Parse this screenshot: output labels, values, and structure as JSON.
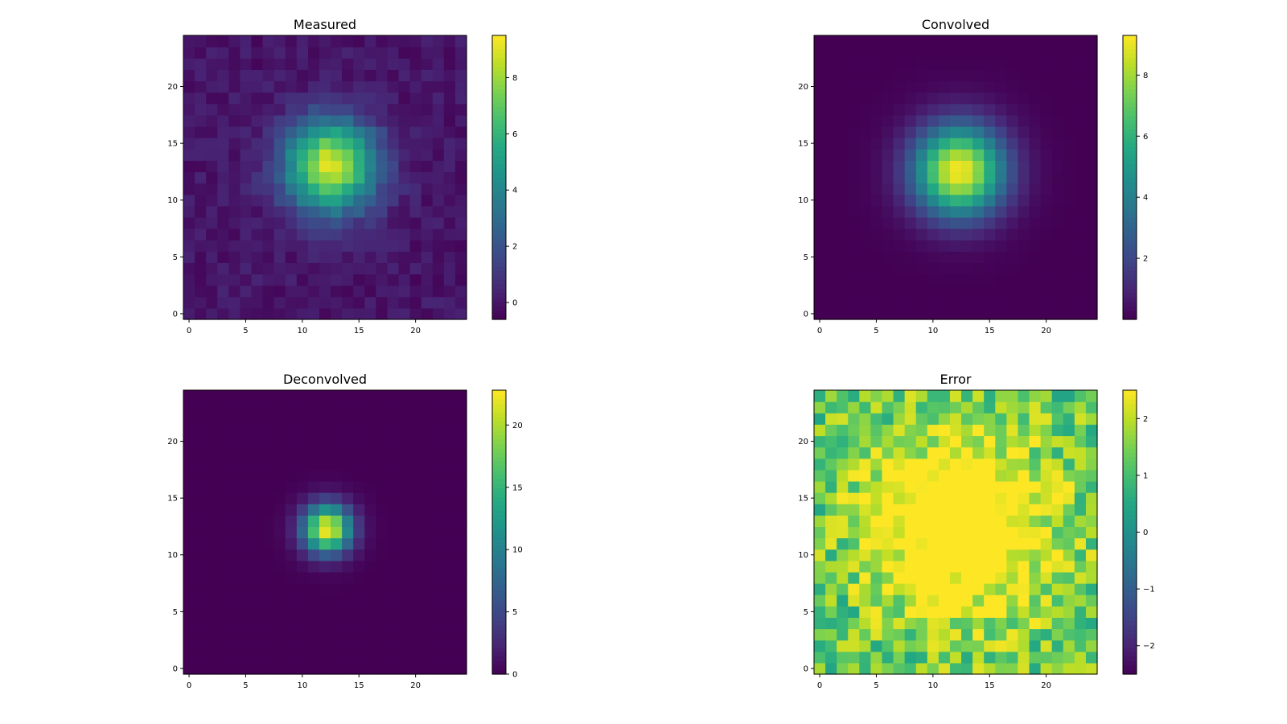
{
  "chart_data": [
    {
      "type": "heatmap",
      "title": "Measured",
      "grid_size": 25,
      "colormap": "viridis",
      "x_ticks": [
        0,
        5,
        10,
        15,
        20
      ],
      "y_ticks": [
        0,
        5,
        10,
        15,
        20
      ],
      "x_tick_labels": [
        "0",
        "5",
        "10",
        "15",
        "20"
      ],
      "y_tick_labels": [
        "0",
        "5",
        "10",
        "15",
        "20"
      ],
      "center": [
        12.5,
        13
      ],
      "sigma": 2.8,
      "peak": 9.0,
      "noise_amp": 0.45,
      "vrange": [
        -0.6,
        9.5
      ],
      "colorbar_ticks": [
        0,
        2,
        4,
        6,
        8
      ],
      "colorbar_tick_labels": [
        "0",
        "2",
        "4",
        "6",
        "8"
      ]
    },
    {
      "type": "heatmap",
      "title": "Convolved",
      "grid_size": 25,
      "colormap": "viridis",
      "x_ticks": [
        0,
        5,
        10,
        15,
        20
      ],
      "y_ticks": [
        0,
        5,
        10,
        15,
        20
      ],
      "x_tick_labels": [
        "0",
        "5",
        "10",
        "15",
        "20"
      ],
      "y_tick_labels": [
        "0",
        "5",
        "10",
        "15",
        "20"
      ],
      "center": [
        12.3,
        12.6
      ],
      "sigma": 2.8,
      "peak": 9.2,
      "noise_amp": 0,
      "vrange": [
        0.0,
        9.3
      ],
      "colorbar_ticks": [
        2,
        4,
        6,
        8
      ],
      "colorbar_tick_labels": [
        "2",
        "4",
        "6",
        "8"
      ]
    },
    {
      "type": "heatmap",
      "title": "Deconvolved",
      "grid_size": 25,
      "colormap": "viridis",
      "x_ticks": [
        0,
        5,
        10,
        15,
        20
      ],
      "y_ticks": [
        0,
        5,
        10,
        15,
        20
      ],
      "x_tick_labels": [
        "0",
        "5",
        "10",
        "15",
        "20"
      ],
      "y_tick_labels": [
        "0",
        "5",
        "10",
        "15",
        "20"
      ],
      "center": [
        12.2,
        12.3
      ],
      "sigma": 1.5,
      "peak": 22.5,
      "noise_amp": 0,
      "vrange": [
        0,
        22.8
      ],
      "colorbar_ticks": [
        0,
        5,
        10,
        15,
        20
      ],
      "colorbar_tick_labels": [
        "0",
        "5",
        "10",
        "15",
        "20"
      ]
    },
    {
      "type": "heatmap",
      "title": "Error",
      "grid_size": 25,
      "colormap": "viridis",
      "x_ticks": [
        0,
        5,
        10,
        15,
        20
      ],
      "y_ticks": [
        0,
        5,
        10,
        15,
        20
      ],
      "x_tick_labels": [
        "0",
        "5",
        "10",
        "15",
        "20"
      ],
      "y_tick_labels": [
        "0",
        "5",
        "10",
        "15",
        "20"
      ],
      "center": [
        12.5,
        12.5
      ],
      "sigma": 5.5,
      "peak": 2.5,
      "noise_amp": 0.9,
      "vrange": [
        -2.5,
        2.5
      ],
      "colorbar_ticks": [
        -2,
        -1,
        0,
        1,
        2
      ],
      "colorbar_tick_labels": [
        "−2",
        "−1",
        "0",
        "1",
        "2"
      ]
    }
  ]
}
